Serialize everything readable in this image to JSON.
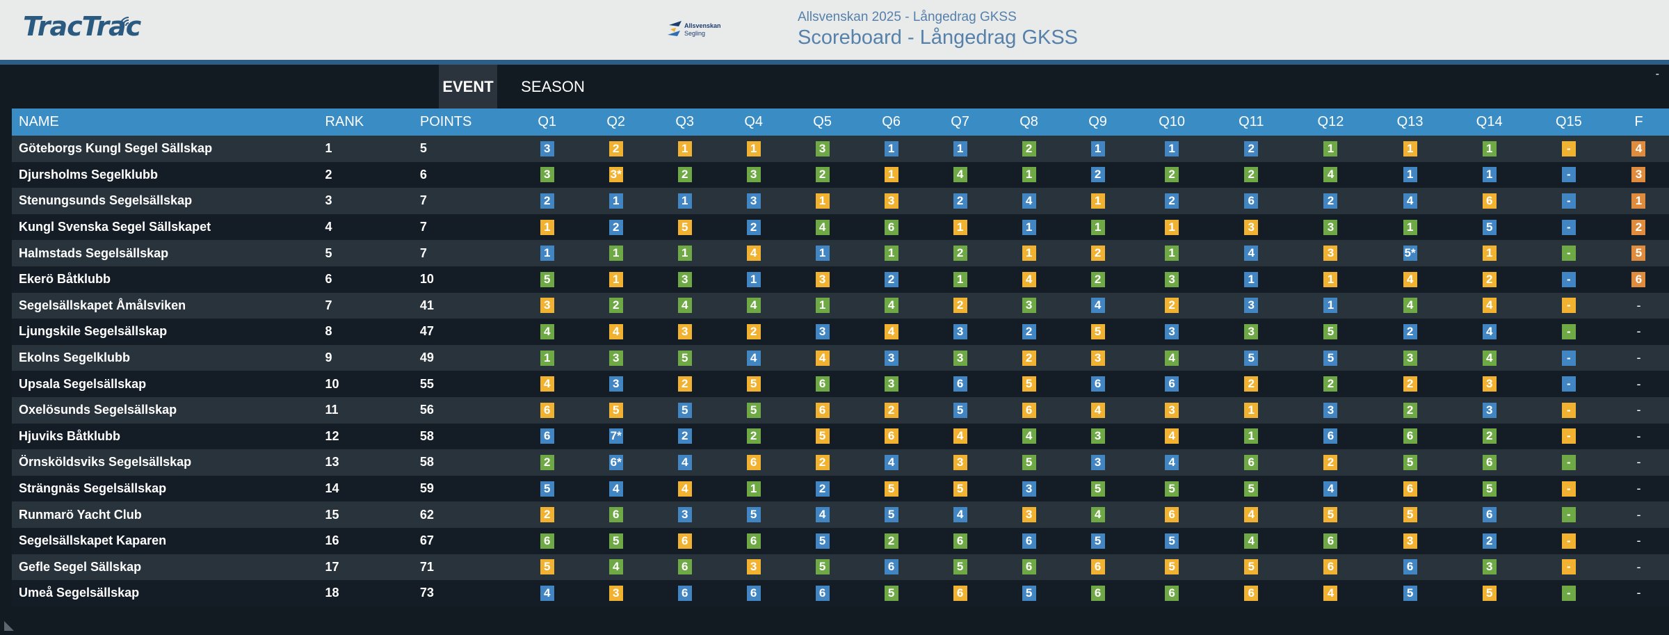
{
  "header": {
    "logo_text": "TracTrac",
    "sponsor_line1": "Allsvenskan",
    "sponsor_line2": "Segling",
    "subtitle": "Allsvenskan 2025 - Långedrag GKSS",
    "title": "Scoreboard - Långedrag GKSS",
    "collapse": "-"
  },
  "tabs": [
    {
      "label": "EVENT",
      "active": true
    },
    {
      "label": "SEASON",
      "active": false
    }
  ],
  "colors": {
    "1": "#4186c2",
    "2": "#f2b231",
    "3": "#6fa945",
    "4": "#f2b231",
    "5": "#4186c2",
    "6": "#e08c3e",
    "blue": "#4186c2",
    "yellow": "#f2b231",
    "green": "#6fa945",
    "orange": "#e08c3e",
    "header": "#3a8cc4"
  },
  "table": {
    "headers": [
      "NAME",
      "RANK",
      "POINTS",
      "Q1",
      "Q2",
      "Q3",
      "Q4",
      "Q5",
      "Q6",
      "Q7",
      "Q8",
      "Q9",
      "Q10",
      "Q11",
      "Q12",
      "Q13",
      "Q14",
      "Q15",
      "F"
    ],
    "rows": [
      {
        "name": "Göteborgs Kungl Segel Sällskap",
        "rank": "1",
        "points": "5",
        "q": [
          [
            "3",
            "b"
          ],
          [
            "2",
            "y"
          ],
          [
            "1",
            "y"
          ],
          [
            "1",
            "y"
          ],
          [
            "3",
            "g"
          ],
          [
            "1",
            "b"
          ],
          [
            "1",
            "b"
          ],
          [
            "2",
            "g"
          ],
          [
            "1",
            "b"
          ],
          [
            "1",
            "b"
          ],
          [
            "2",
            "b"
          ],
          [
            "1",
            "g"
          ],
          [
            "1",
            "y"
          ],
          [
            "1",
            "g"
          ],
          [
            "-",
            "y"
          ]
        ],
        "f": [
          "4",
          "o"
        ]
      },
      {
        "name": "Djursholms Segelklubb",
        "rank": "2",
        "points": "6",
        "q": [
          [
            "3",
            "g"
          ],
          [
            "3*",
            "y"
          ],
          [
            "2",
            "g"
          ],
          [
            "3",
            "g"
          ],
          [
            "2",
            "g"
          ],
          [
            "1",
            "y"
          ],
          [
            "4",
            "g"
          ],
          [
            "1",
            "g"
          ],
          [
            "2",
            "b"
          ],
          [
            "2",
            "g"
          ],
          [
            "2",
            "g"
          ],
          [
            "4",
            "g"
          ],
          [
            "1",
            "b"
          ],
          [
            "1",
            "b"
          ],
          [
            "-",
            "b"
          ]
        ],
        "f": [
          "3",
          "o"
        ]
      },
      {
        "name": "Stenungsunds Segelsällskap",
        "rank": "3",
        "points": "7",
        "q": [
          [
            "2",
            "b"
          ],
          [
            "1",
            "b"
          ],
          [
            "1",
            "b"
          ],
          [
            "3",
            "b"
          ],
          [
            "1",
            "y"
          ],
          [
            "3",
            "y"
          ],
          [
            "2",
            "b"
          ],
          [
            "4",
            "b"
          ],
          [
            "1",
            "y"
          ],
          [
            "2",
            "b"
          ],
          [
            "6",
            "b"
          ],
          [
            "2",
            "b"
          ],
          [
            "4",
            "b"
          ],
          [
            "6",
            "y"
          ],
          [
            "-",
            "b"
          ]
        ],
        "f": [
          "1",
          "o"
        ]
      },
      {
        "name": "Kungl Svenska Segel Sällskapet",
        "rank": "4",
        "points": "7",
        "q": [
          [
            "1",
            "y"
          ],
          [
            "2",
            "b"
          ],
          [
            "5",
            "y"
          ],
          [
            "2",
            "b"
          ],
          [
            "4",
            "g"
          ],
          [
            "6",
            "g"
          ],
          [
            "1",
            "y"
          ],
          [
            "1",
            "b"
          ],
          [
            "1",
            "g"
          ],
          [
            "1",
            "y"
          ],
          [
            "3",
            "y"
          ],
          [
            "3",
            "g"
          ],
          [
            "1",
            "g"
          ],
          [
            "5",
            "b"
          ],
          [
            "-",
            "b"
          ]
        ],
        "f": [
          "2",
          "o"
        ]
      },
      {
        "name": "Halmstads Segelsällskap",
        "rank": "5",
        "points": "7",
        "q": [
          [
            "1",
            "b"
          ],
          [
            "1",
            "g"
          ],
          [
            "1",
            "g"
          ],
          [
            "4",
            "y"
          ],
          [
            "1",
            "b"
          ],
          [
            "1",
            "g"
          ],
          [
            "2",
            "g"
          ],
          [
            "1",
            "y"
          ],
          [
            "2",
            "y"
          ],
          [
            "1",
            "g"
          ],
          [
            "4",
            "b"
          ],
          [
            "3",
            "y"
          ],
          [
            "5*",
            "b"
          ],
          [
            "1",
            "y"
          ],
          [
            "-",
            "g"
          ]
        ],
        "f": [
          "5",
          "o"
        ]
      },
      {
        "name": "Ekerö Båtklubb",
        "rank": "6",
        "points": "10",
        "q": [
          [
            "5",
            "g"
          ],
          [
            "1",
            "y"
          ],
          [
            "3",
            "g"
          ],
          [
            "1",
            "b"
          ],
          [
            "3",
            "y"
          ],
          [
            "2",
            "b"
          ],
          [
            "1",
            "g"
          ],
          [
            "4",
            "y"
          ],
          [
            "2",
            "g"
          ],
          [
            "3",
            "g"
          ],
          [
            "1",
            "b"
          ],
          [
            "1",
            "y"
          ],
          [
            "4",
            "y"
          ],
          [
            "2",
            "y"
          ],
          [
            "-",
            "b"
          ]
        ],
        "f": [
          "6",
          "o"
        ]
      },
      {
        "name": "Segelsällskapet Åmålsviken",
        "rank": "7",
        "points": "41",
        "q": [
          [
            "3",
            "y"
          ],
          [
            "2",
            "g"
          ],
          [
            "4",
            "g"
          ],
          [
            "4",
            "g"
          ],
          [
            "1",
            "g"
          ],
          [
            "4",
            "g"
          ],
          [
            "2",
            "y"
          ],
          [
            "3",
            "g"
          ],
          [
            "4",
            "b"
          ],
          [
            "2",
            "y"
          ],
          [
            "3",
            "b"
          ],
          [
            "1",
            "b"
          ],
          [
            "4",
            "g"
          ],
          [
            "4",
            "y"
          ],
          [
            "-",
            "y"
          ]
        ],
        "f": [
          "-",
          ""
        ]
      },
      {
        "name": "Ljungskile Segelsällskap",
        "rank": "8",
        "points": "47",
        "q": [
          [
            "4",
            "g"
          ],
          [
            "4",
            "y"
          ],
          [
            "3",
            "y"
          ],
          [
            "2",
            "y"
          ],
          [
            "3",
            "b"
          ],
          [
            "4",
            "y"
          ],
          [
            "3",
            "b"
          ],
          [
            "2",
            "b"
          ],
          [
            "5",
            "y"
          ],
          [
            "3",
            "b"
          ],
          [
            "3",
            "g"
          ],
          [
            "5",
            "g"
          ],
          [
            "2",
            "b"
          ],
          [
            "4",
            "b"
          ],
          [
            "-",
            "g"
          ]
        ],
        "f": [
          "-",
          ""
        ]
      },
      {
        "name": "Ekolns Segelklubb",
        "rank": "9",
        "points": "49",
        "q": [
          [
            "1",
            "g"
          ],
          [
            "3",
            "g"
          ],
          [
            "5",
            "g"
          ],
          [
            "4",
            "b"
          ],
          [
            "4",
            "y"
          ],
          [
            "3",
            "b"
          ],
          [
            "3",
            "g"
          ],
          [
            "2",
            "y"
          ],
          [
            "3",
            "y"
          ],
          [
            "4",
            "g"
          ],
          [
            "5",
            "b"
          ],
          [
            "5",
            "b"
          ],
          [
            "3",
            "g"
          ],
          [
            "4",
            "g"
          ],
          [
            "-",
            "b"
          ]
        ],
        "f": [
          "-",
          ""
        ]
      },
      {
        "name": "Upsala Segelsällskap",
        "rank": "10",
        "points": "55",
        "q": [
          [
            "4",
            "y"
          ],
          [
            "3",
            "b"
          ],
          [
            "2",
            "y"
          ],
          [
            "5",
            "y"
          ],
          [
            "6",
            "g"
          ],
          [
            "3",
            "g"
          ],
          [
            "6",
            "b"
          ],
          [
            "5",
            "y"
          ],
          [
            "6",
            "b"
          ],
          [
            "6",
            "b"
          ],
          [
            "2",
            "y"
          ],
          [
            "2",
            "g"
          ],
          [
            "2",
            "y"
          ],
          [
            "3",
            "y"
          ],
          [
            "-",
            "b"
          ]
        ],
        "f": [
          "-",
          ""
        ]
      },
      {
        "name": "Oxelösunds Segelsällskap",
        "rank": "11",
        "points": "56",
        "q": [
          [
            "6",
            "y"
          ],
          [
            "5",
            "y"
          ],
          [
            "5",
            "b"
          ],
          [
            "5",
            "g"
          ],
          [
            "6",
            "y"
          ],
          [
            "2",
            "y"
          ],
          [
            "5",
            "b"
          ],
          [
            "6",
            "y"
          ],
          [
            "4",
            "y"
          ],
          [
            "3",
            "y"
          ],
          [
            "1",
            "y"
          ],
          [
            "3",
            "b"
          ],
          [
            "2",
            "g"
          ],
          [
            "3",
            "b"
          ],
          [
            "-",
            "y"
          ]
        ],
        "f": [
          "-",
          ""
        ]
      },
      {
        "name": "Hjuviks Båtklubb",
        "rank": "12",
        "points": "58",
        "q": [
          [
            "6",
            "b"
          ],
          [
            "7*",
            "b"
          ],
          [
            "2",
            "b"
          ],
          [
            "2",
            "g"
          ],
          [
            "5",
            "y"
          ],
          [
            "6",
            "y"
          ],
          [
            "4",
            "y"
          ],
          [
            "4",
            "g"
          ],
          [
            "3",
            "g"
          ],
          [
            "4",
            "y"
          ],
          [
            "1",
            "g"
          ],
          [
            "6",
            "b"
          ],
          [
            "6",
            "g"
          ],
          [
            "2",
            "g"
          ],
          [
            "-",
            "y"
          ]
        ],
        "f": [
          "-",
          ""
        ]
      },
      {
        "name": "Örnsköldsviks Segelsällskap",
        "rank": "13",
        "points": "58",
        "q": [
          [
            "2",
            "g"
          ],
          [
            "6*",
            "b"
          ],
          [
            "4",
            "b"
          ],
          [
            "6",
            "y"
          ],
          [
            "2",
            "y"
          ],
          [
            "4",
            "b"
          ],
          [
            "3",
            "y"
          ],
          [
            "5",
            "g"
          ],
          [
            "3",
            "b"
          ],
          [
            "4",
            "b"
          ],
          [
            "6",
            "g"
          ],
          [
            "2",
            "y"
          ],
          [
            "5",
            "g"
          ],
          [
            "6",
            "g"
          ],
          [
            "-",
            "g"
          ]
        ],
        "f": [
          "-",
          ""
        ]
      },
      {
        "name": "Strängnäs Segelsällskap",
        "rank": "14",
        "points": "59",
        "q": [
          [
            "5",
            "b"
          ],
          [
            "4",
            "b"
          ],
          [
            "4",
            "y"
          ],
          [
            "1",
            "g"
          ],
          [
            "2",
            "b"
          ],
          [
            "5",
            "y"
          ],
          [
            "5",
            "y"
          ],
          [
            "3",
            "b"
          ],
          [
            "5",
            "g"
          ],
          [
            "5",
            "g"
          ],
          [
            "5",
            "g"
          ],
          [
            "4",
            "b"
          ],
          [
            "6",
            "y"
          ],
          [
            "5",
            "g"
          ],
          [
            "-",
            "y"
          ]
        ],
        "f": [
          "-",
          ""
        ]
      },
      {
        "name": "Runmarö Yacht Club",
        "rank": "15",
        "points": "62",
        "q": [
          [
            "2",
            "y"
          ],
          [
            "6",
            "g"
          ],
          [
            "3",
            "b"
          ],
          [
            "5",
            "b"
          ],
          [
            "4",
            "b"
          ],
          [
            "5",
            "b"
          ],
          [
            "4",
            "b"
          ],
          [
            "3",
            "y"
          ],
          [
            "4",
            "g"
          ],
          [
            "6",
            "y"
          ],
          [
            "4",
            "y"
          ],
          [
            "5",
            "y"
          ],
          [
            "5",
            "y"
          ],
          [
            "6",
            "b"
          ],
          [
            "-",
            "g"
          ]
        ],
        "f": [
          "-",
          ""
        ]
      },
      {
        "name": "Segelsällskapet Kaparen",
        "rank": "16",
        "points": "67",
        "q": [
          [
            "6",
            "g"
          ],
          [
            "5",
            "g"
          ],
          [
            "6",
            "y"
          ],
          [
            "6",
            "g"
          ],
          [
            "5",
            "b"
          ],
          [
            "2",
            "g"
          ],
          [
            "6",
            "g"
          ],
          [
            "6",
            "b"
          ],
          [
            "5",
            "b"
          ],
          [
            "5",
            "b"
          ],
          [
            "4",
            "g"
          ],
          [
            "6",
            "g"
          ],
          [
            "3",
            "y"
          ],
          [
            "2",
            "b"
          ],
          [
            "-",
            "y"
          ]
        ],
        "f": [
          "-",
          ""
        ]
      },
      {
        "name": "Gefle Segel Sällskap",
        "rank": "17",
        "points": "71",
        "q": [
          [
            "5",
            "y"
          ],
          [
            "4",
            "g"
          ],
          [
            "6",
            "g"
          ],
          [
            "3",
            "y"
          ],
          [
            "5",
            "g"
          ],
          [
            "6",
            "b"
          ],
          [
            "5",
            "g"
          ],
          [
            "6",
            "g"
          ],
          [
            "6",
            "y"
          ],
          [
            "5",
            "y"
          ],
          [
            "5",
            "y"
          ],
          [
            "6",
            "y"
          ],
          [
            "6",
            "b"
          ],
          [
            "3",
            "g"
          ],
          [
            "-",
            "y"
          ]
        ],
        "f": [
          "-",
          ""
        ]
      },
      {
        "name": "Umeå Segelsällskap",
        "rank": "18",
        "points": "73",
        "q": [
          [
            "4",
            "b"
          ],
          [
            "3",
            "y"
          ],
          [
            "6",
            "b"
          ],
          [
            "6",
            "b"
          ],
          [
            "6",
            "b"
          ],
          [
            "5",
            "g"
          ],
          [
            "6",
            "y"
          ],
          [
            "5",
            "b"
          ],
          [
            "6",
            "g"
          ],
          [
            "6",
            "g"
          ],
          [
            "6",
            "y"
          ],
          [
            "4",
            "y"
          ],
          [
            "5",
            "b"
          ],
          [
            "5",
            "y"
          ],
          [
            "-",
            "g"
          ]
        ],
        "f": [
          "-",
          ""
        ]
      }
    ]
  }
}
